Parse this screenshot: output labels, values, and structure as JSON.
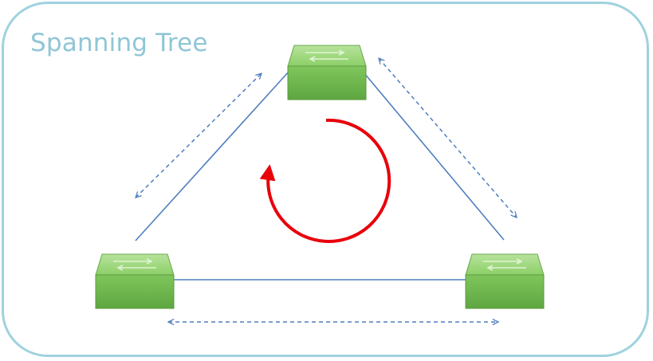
{
  "title": "Spanning Tree",
  "colors": {
    "frame": "#9fd2de",
    "title": "#8fc6d6",
    "link": "#4f7fbf",
    "loop_arrow": "#e8000b",
    "switch_top": "#9fd67e",
    "switch_front": "#6fb84f"
  },
  "icons": [
    "network-switch-icon",
    "loop-arrow-icon",
    "double-headed-arrow-icon"
  ],
  "switches": [
    "top",
    "left",
    "right"
  ]
}
